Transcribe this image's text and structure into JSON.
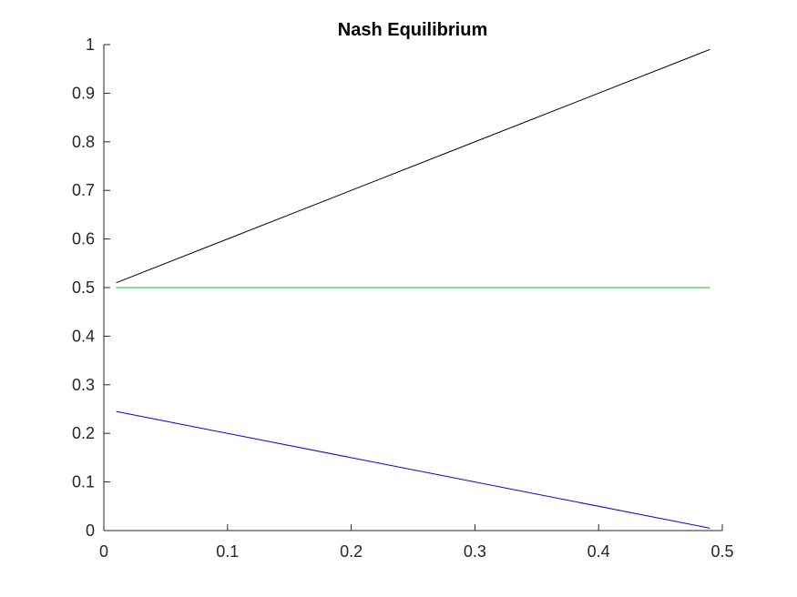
{
  "chart_data": {
    "type": "line",
    "title": "Nash Equilibrium",
    "xlabel": "",
    "ylabel": "",
    "xlim": [
      0,
      0.5
    ],
    "ylim": [
      0,
      1
    ],
    "x_ticks": [
      0,
      0.1,
      0.2,
      0.3,
      0.4,
      0.5
    ],
    "x_tick_labels": [
      "0",
      "0.1",
      "0.2",
      "0.3",
      "0.4",
      "0.5"
    ],
    "y_ticks": [
      0,
      0.1,
      0.2,
      0.3,
      0.4,
      0.5,
      0.6,
      0.7,
      0.8,
      0.9,
      1
    ],
    "y_tick_labels": [
      "0",
      "0.1",
      "0.2",
      "0.3",
      "0.4",
      "0.5",
      "0.6",
      "0.7",
      "0.8",
      "0.9",
      "1"
    ],
    "grid": false,
    "legend": "none",
    "series": [
      {
        "color": "#000000",
        "x": [
          0.01,
          0.49
        ],
        "y": [
          0.51,
          0.99
        ]
      },
      {
        "color": "#00cc00",
        "x": [
          0.01,
          0.49
        ],
        "y": [
          0.5,
          0.5
        ]
      },
      {
        "color": "#0000ff",
        "x": [
          0.01,
          0.49
        ],
        "y": [
          0.245,
          0.005
        ]
      }
    ]
  }
}
